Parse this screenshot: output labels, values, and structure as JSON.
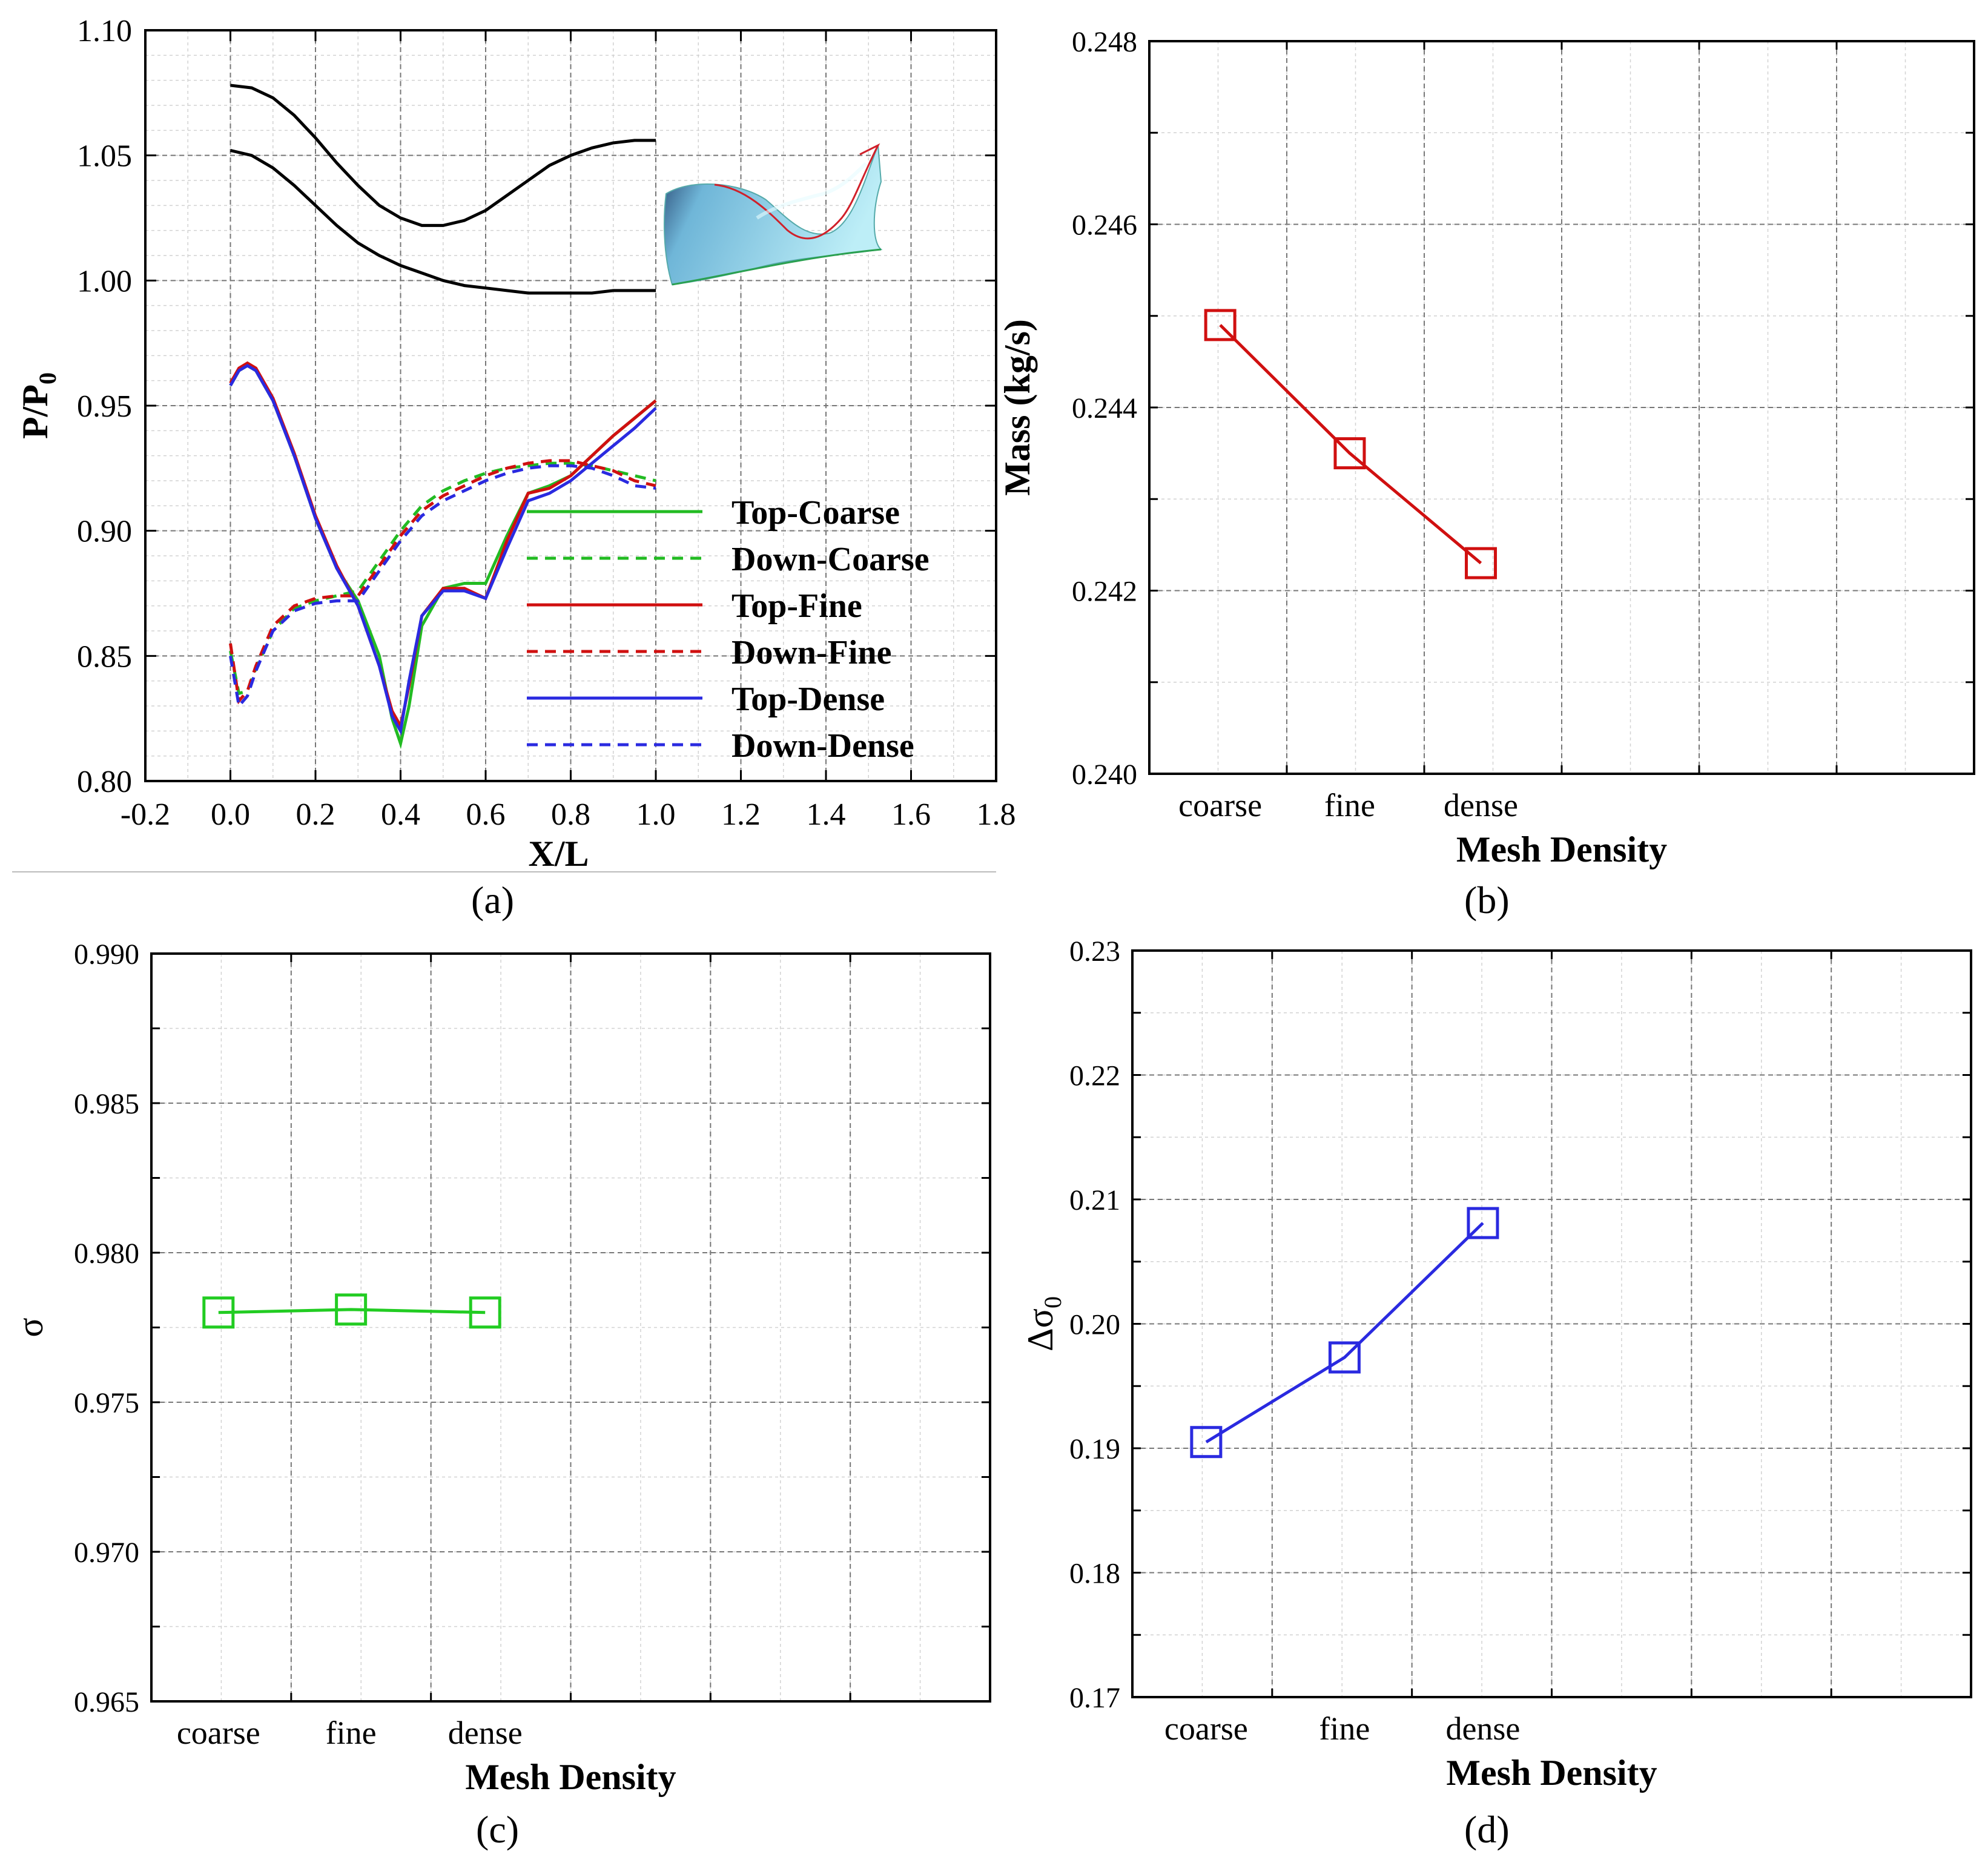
{
  "figure": {
    "panel_labels": [
      "(a)",
      "(b)",
      "(c)",
      "(d)"
    ]
  },
  "chart_data": [
    {
      "id": "a",
      "type": "line",
      "xlabel": "X/L",
      "ylabel_main": "P/P",
      "ylabel_sub": "0",
      "xlim": [
        -0.2,
        1.8
      ],
      "ylim": [
        0.8,
        1.1
      ],
      "xticks": [
        "-0.2",
        "0.0",
        "0.2",
        "0.4",
        "0.6",
        "0.8",
        "1.0",
        "1.2",
        "1.4",
        "1.6",
        "1.8"
      ],
      "yticks": [
        "0.80",
        "0.85",
        "0.90",
        "0.95",
        "1.00",
        "1.05",
        "1.10"
      ],
      "grid": true,
      "legend_position": "right",
      "inset": "blade-surface-3d",
      "geometry_curves": [
        {
          "x": [
            0.0,
            0.05,
            0.1,
            0.15,
            0.2,
            0.25,
            0.3,
            0.35,
            0.4,
            0.45,
            0.5,
            0.55,
            0.6,
            0.65,
            0.7,
            0.75,
            0.8,
            0.85,
            0.9,
            0.95,
            1.0
          ],
          "y": [
            1.078,
            1.077,
            1.073,
            1.066,
            1.057,
            1.047,
            1.038,
            1.03,
            1.025,
            1.022,
            1.022,
            1.024,
            1.028,
            1.034,
            1.04,
            1.046,
            1.05,
            1.053,
            1.055,
            1.056,
            1.056
          ]
        },
        {
          "x": [
            0.0,
            0.05,
            0.1,
            0.15,
            0.2,
            0.25,
            0.3,
            0.35,
            0.4,
            0.45,
            0.5,
            0.55,
            0.6,
            0.65,
            0.7,
            0.75,
            0.8,
            0.85,
            0.9,
            0.95,
            1.0
          ],
          "y": [
            1.052,
            1.05,
            1.045,
            1.038,
            1.03,
            1.022,
            1.015,
            1.01,
            1.006,
            1.003,
            1.0,
            0.998,
            0.997,
            0.996,
            0.995,
            0.995,
            0.995,
            0.995,
            0.996,
            0.996,
            0.996
          ]
        }
      ],
      "series": [
        {
          "name": "Top-Coarse",
          "color": "#22bb22",
          "dash": false,
          "x": [
            0.0,
            0.02,
            0.04,
            0.06,
            0.1,
            0.15,
            0.2,
            0.25,
            0.3,
            0.35,
            0.38,
            0.4,
            0.42,
            0.45,
            0.5,
            0.55,
            0.6,
            0.65,
            0.7,
            0.75,
            0.8,
            0.85,
            0.9,
            0.95,
            1.0
          ],
          "y": [
            0.958,
            0.964,
            0.966,
            0.964,
            0.952,
            0.93,
            0.905,
            0.885,
            0.872,
            0.85,
            0.825,
            0.815,
            0.83,
            0.862,
            0.877,
            0.879,
            0.879,
            0.898,
            0.915,
            0.918,
            0.922,
            0.93,
            0.938,
            0.945,
            0.952
          ]
        },
        {
          "name": "Down-Coarse",
          "color": "#22bb22",
          "dash": true,
          "x": [
            0.0,
            0.02,
            0.04,
            0.06,
            0.1,
            0.15,
            0.2,
            0.25,
            0.3,
            0.35,
            0.4,
            0.45,
            0.5,
            0.55,
            0.6,
            0.65,
            0.7,
            0.75,
            0.8,
            0.85,
            0.9,
            0.95,
            1.0
          ],
          "y": [
            0.852,
            0.835,
            0.836,
            0.845,
            0.86,
            0.869,
            0.872,
            0.874,
            0.876,
            0.888,
            0.9,
            0.91,
            0.916,
            0.92,
            0.923,
            0.925,
            0.926,
            0.927,
            0.927,
            0.926,
            0.924,
            0.922,
            0.92
          ]
        },
        {
          "name": "Top-Fine",
          "color": "#d01010",
          "dash": false,
          "x": [
            0.0,
            0.02,
            0.04,
            0.06,
            0.1,
            0.15,
            0.2,
            0.25,
            0.3,
            0.35,
            0.38,
            0.4,
            0.42,
            0.45,
            0.5,
            0.55,
            0.6,
            0.65,
            0.7,
            0.75,
            0.8,
            0.85,
            0.9,
            0.95,
            1.0
          ],
          "y": [
            0.959,
            0.965,
            0.967,
            0.965,
            0.953,
            0.931,
            0.906,
            0.886,
            0.87,
            0.846,
            0.828,
            0.822,
            0.838,
            0.866,
            0.877,
            0.877,
            0.873,
            0.896,
            0.915,
            0.917,
            0.922,
            0.93,
            0.938,
            0.945,
            0.952
          ]
        },
        {
          "name": "Down-Fine",
          "color": "#d01010",
          "dash": true,
          "x": [
            0.0,
            0.02,
            0.04,
            0.06,
            0.1,
            0.15,
            0.2,
            0.25,
            0.3,
            0.35,
            0.4,
            0.45,
            0.5,
            0.55,
            0.6,
            0.65,
            0.7,
            0.75,
            0.8,
            0.85,
            0.9,
            0.95,
            1.0
          ],
          "y": [
            0.855,
            0.832,
            0.836,
            0.846,
            0.862,
            0.87,
            0.873,
            0.874,
            0.874,
            0.886,
            0.898,
            0.908,
            0.914,
            0.918,
            0.922,
            0.925,
            0.927,
            0.928,
            0.928,
            0.926,
            0.924,
            0.92,
            0.918
          ]
        },
        {
          "name": "Top-Dense",
          "color": "#2a2ae0",
          "dash": false,
          "x": [
            0.0,
            0.02,
            0.04,
            0.06,
            0.1,
            0.15,
            0.2,
            0.25,
            0.3,
            0.35,
            0.38,
            0.4,
            0.42,
            0.45,
            0.5,
            0.55,
            0.6,
            0.65,
            0.7,
            0.75,
            0.8,
            0.85,
            0.9,
            0.95,
            1.0
          ],
          "y": [
            0.958,
            0.964,
            0.966,
            0.964,
            0.952,
            0.93,
            0.905,
            0.885,
            0.87,
            0.846,
            0.826,
            0.82,
            0.84,
            0.866,
            0.876,
            0.876,
            0.873,
            0.893,
            0.912,
            0.915,
            0.92,
            0.927,
            0.934,
            0.941,
            0.949
          ]
        },
        {
          "name": "Down-Dense",
          "color": "#2a2ae0",
          "dash": true,
          "x": [
            0.0,
            0.02,
            0.04,
            0.06,
            0.1,
            0.15,
            0.2,
            0.25,
            0.3,
            0.35,
            0.4,
            0.45,
            0.5,
            0.55,
            0.6,
            0.65,
            0.7,
            0.75,
            0.8,
            0.85,
            0.9,
            0.95,
            1.0
          ],
          "y": [
            0.85,
            0.83,
            0.834,
            0.844,
            0.86,
            0.868,
            0.871,
            0.872,
            0.872,
            0.884,
            0.896,
            0.906,
            0.912,
            0.916,
            0.92,
            0.923,
            0.925,
            0.926,
            0.926,
            0.925,
            0.922,
            0.918,
            0.917
          ]
        }
      ]
    },
    {
      "id": "b",
      "type": "line",
      "xlabel": "Mesh Density",
      "ylabel": "Mass (kg/s)",
      "categories": [
        "coarse",
        "fine",
        "dense"
      ],
      "values": [
        0.2449,
        0.2435,
        0.2423
      ],
      "ylim": [
        0.24,
        0.248
      ],
      "yticks": [
        "0.240",
        "0.242",
        "0.244",
        "0.246",
        "0.248"
      ],
      "color": "#d01010",
      "grid": true
    },
    {
      "id": "c",
      "type": "line",
      "xlabel": "Mesh Density",
      "ylabel": "σ",
      "categories": [
        "coarse",
        "fine",
        "dense"
      ],
      "values": [
        0.978,
        0.9781,
        0.978
      ],
      "ylim": [
        0.965,
        0.99
      ],
      "yticks": [
        "0.965",
        "0.970",
        "0.975",
        "0.980",
        "0.985",
        "0.990"
      ],
      "color": "#22cc22",
      "grid": true
    },
    {
      "id": "d",
      "type": "line",
      "xlabel": "Mesh Density",
      "ylabel_main": "Δσ",
      "ylabel_sub": "0",
      "categories": [
        "coarse",
        "fine",
        "dense"
      ],
      "values": [
        0.1905,
        0.1973,
        0.2081
      ],
      "ylim": [
        0.17,
        0.23
      ],
      "yticks": [
        "0.17",
        "0.18",
        "0.19",
        "0.20",
        "0.21",
        "0.22",
        "0.23"
      ],
      "color": "#2a2ae0",
      "grid": true
    }
  ]
}
